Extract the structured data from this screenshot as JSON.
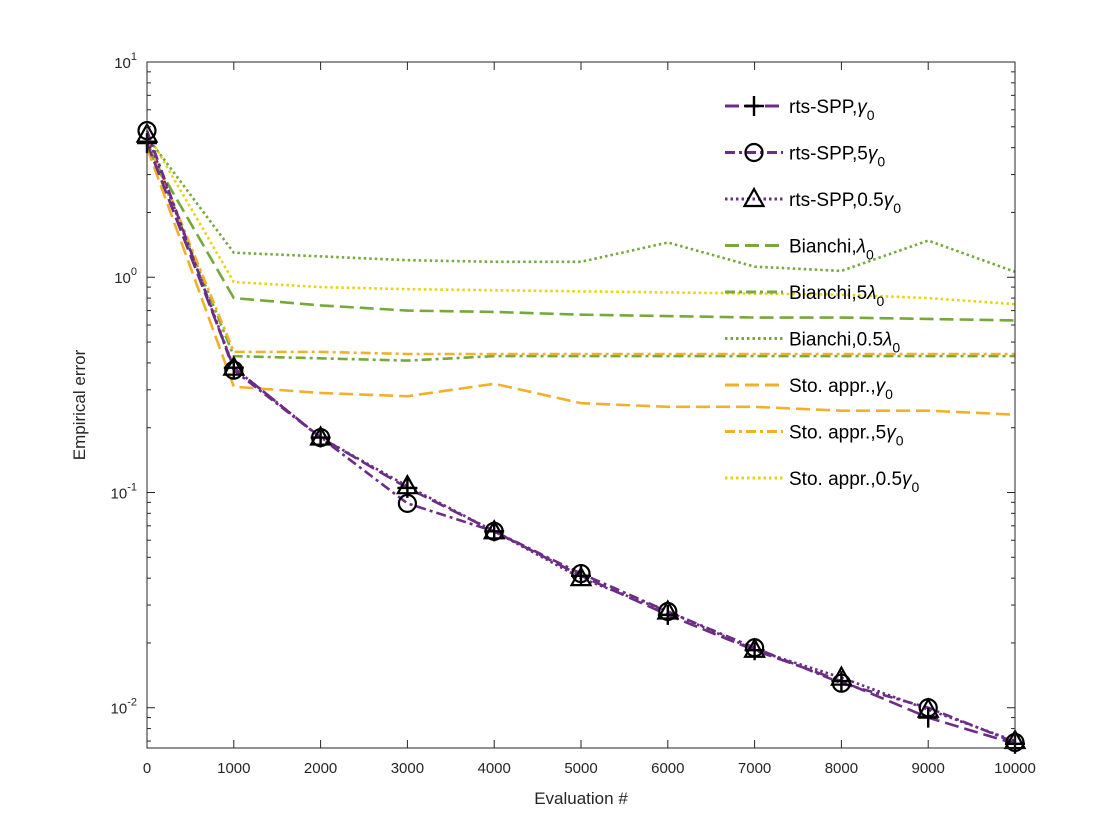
{
  "chart_data": {
    "type": "line",
    "title": "",
    "xlabel": "Evaluation #",
    "ylabel": "Empirical error",
    "xlim": [
      0,
      10000
    ],
    "ylim": [
      0.0065,
      10
    ],
    "yscale": "log",
    "x": [
      0,
      1000,
      2000,
      3000,
      4000,
      5000,
      6000,
      7000,
      8000,
      9000,
      10000
    ],
    "xticks": [
      0,
      1000,
      2000,
      3000,
      4000,
      5000,
      6000,
      7000,
      8000,
      9000,
      10000
    ],
    "xtick_labels": [
      "0",
      "1000",
      "2000",
      "3000",
      "4000",
      "5000",
      "6000",
      "7000",
      "8000",
      "9000",
      "10000"
    ],
    "yticks": [
      0.01,
      0.1,
      1,
      10
    ],
    "ytick_base": "10",
    "ytick_exponents": [
      "-2",
      "-1",
      "0",
      "1"
    ],
    "legend_position": "top-right",
    "series": [
      {
        "name": "rts-SPP,",
        "sym": "γ",
        "sub": "0",
        "color": "#6b2d86",
        "dash": "14 6",
        "marker": "plus",
        "values": [
          4.2,
          0.38,
          0.18,
          0.105,
          0.066,
          0.041,
          0.027,
          0.0185,
          0.0133,
          0.009,
          0.0068
        ]
      },
      {
        "name": "rts-SPP,5",
        "sym": "γ",
        "sub": "0",
        "color": "#6b2d86",
        "dash": "10 4 3 4",
        "marker": "circle",
        "values": [
          4.8,
          0.37,
          0.18,
          0.089,
          0.066,
          0.042,
          0.028,
          0.019,
          0.013,
          0.01,
          0.0069
        ]
      },
      {
        "name": "rts-SPP,0.5",
        "sym": "γ",
        "sub": "0",
        "color": "#6b2d86",
        "dash": "2.5 3",
        "marker": "triangle",
        "values": [
          4.6,
          0.38,
          0.18,
          0.107,
          0.066,
          0.04,
          0.028,
          0.0186,
          0.0138,
          0.0098,
          0.007
        ]
      },
      {
        "name": "Bianchi,",
        "sym": "λ",
        "sub": "0",
        "color": "#76a83b",
        "dash": "14 6",
        "marker": "none",
        "values": [
          4.0,
          0.8,
          0.74,
          0.7,
          0.69,
          0.67,
          0.66,
          0.65,
          0.65,
          0.64,
          0.63
        ]
      },
      {
        "name": "Bianchi,5",
        "sym": "λ",
        "sub": "0",
        "color": "#76a83b",
        "dash": "10 4 3 4",
        "marker": "none",
        "values": [
          4.3,
          0.43,
          0.42,
          0.41,
          0.43,
          0.43,
          0.43,
          0.43,
          0.43,
          0.43,
          0.43
        ]
      },
      {
        "name": "Bianchi,0.5",
        "sym": "λ",
        "sub": "0",
        "color": "#76a83b",
        "dash": "2.5 3",
        "marker": "none",
        "values": [
          4.5,
          1.3,
          1.25,
          1.2,
          1.18,
          1.18,
          1.45,
          1.12,
          1.07,
          1.48,
          1.06
        ]
      },
      {
        "name": "Sto. appr.,",
        "sym": "γ",
        "sub": "0",
        "color": "#f2b02a",
        "dash": "14 6",
        "marker": "none",
        "values": [
          4.0,
          0.31,
          0.29,
          0.28,
          0.32,
          0.26,
          0.25,
          0.25,
          0.24,
          0.24,
          0.23
        ]
      },
      {
        "name": "Sto. appr.,5",
        "sym": "γ",
        "sub": "0",
        "color": "#f2b02a",
        "dash": "10 4 3 4",
        "marker": "none",
        "values": [
          4.4,
          0.45,
          0.45,
          0.44,
          0.44,
          0.44,
          0.44,
          0.44,
          0.44,
          0.44,
          0.44
        ]
      },
      {
        "name": "Sto. appr.,0.5",
        "sym": "γ",
        "sub": "0",
        "color": "#e6d40f",
        "dash": "2.5 3",
        "marker": "none",
        "values": [
          4.7,
          0.95,
          0.9,
          0.88,
          0.87,
          0.86,
          0.85,
          0.84,
          0.83,
          0.8,
          0.75
        ]
      }
    ]
  }
}
